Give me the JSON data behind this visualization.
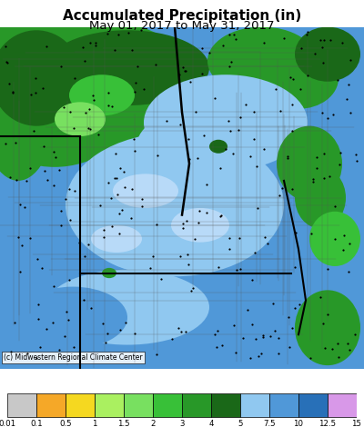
{
  "title_line1": "Accumulated Precipitation (in)",
  "title_line2": "May 01, 2017 to May 31, 2017",
  "title_fontsize": 11,
  "subtitle_fontsize": 9.5,
  "copyright_text": "(c) Midwestern Regional Climate Center",
  "colorbar_colors": [
    "#c8c8c8",
    "#f5a828",
    "#f5d820",
    "#aaf060",
    "#78e060",
    "#38c038",
    "#289828",
    "#1a6818",
    "#90c8f0",
    "#5098d8",
    "#2870b8",
    "#d898e8"
  ],
  "colorbar_labels": [
    "0.01",
    "0.1",
    "0.5",
    "1",
    "1.5",
    "2",
    "3",
    "4",
    "5",
    "7.5",
    "10",
    "12.5",
    "15"
  ],
  "figure_bg_color": "#ffffff",
  "fig_width": 4.0,
  "fig_height": 4.92,
  "dpi": 100,
  "map_main_blue": "#5098d8",
  "map_light_blue": "#90c8f0",
  "map_dark_green": "#289828",
  "map_med_green": "#38c038",
  "map_lt_green": "#78e060"
}
